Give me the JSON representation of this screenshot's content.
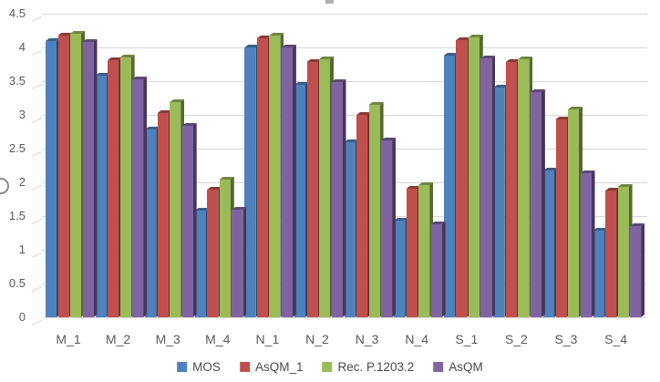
{
  "chart_data": {
    "type": "bar",
    "style": "3d-clustered-column",
    "title": "",
    "categories": [
      "M_1",
      "M_2",
      "M_3",
      "M_4",
      "N_1",
      "N_2",
      "N_3",
      "N_4",
      "S_1",
      "S_2",
      "S_3",
      "S_4"
    ],
    "series": [
      {
        "name": "MOS",
        "color": "#4F81BD",
        "values": [
          4.1,
          3.58,
          2.78,
          1.58,
          4.0,
          3.44,
          2.6,
          1.43,
          3.88,
          3.41,
          2.18,
          1.28
        ]
      },
      {
        "name": "AsQM_1",
        "color": "#C0504D",
        "values": [
          4.17,
          3.81,
          3.03,
          1.89,
          4.14,
          3.79,
          3.0,
          1.91,
          4.11,
          3.79,
          2.93,
          1.88
        ]
      },
      {
        "name": "Rec. P.1203.2",
        "color": "#9BBB59",
        "values": [
          4.2,
          3.85,
          3.19,
          2.04,
          4.17,
          3.82,
          3.15,
          1.96,
          4.15,
          3.82,
          3.08,
          1.93
        ]
      },
      {
        "name": "AsQM",
        "color": "#8064A2",
        "values": [
          4.08,
          3.53,
          2.84,
          1.6,
          4.0,
          3.48,
          2.62,
          1.38,
          3.84,
          3.34,
          2.13,
          1.35
        ]
      }
    ],
    "xlabel": "",
    "ylabel": "",
    "ylim": [
      0,
      4.5
    ],
    "ytick_step": 0.5,
    "yticks": [
      "0",
      "0.5",
      "1",
      "1.5",
      "2",
      "2.5",
      "3",
      "3.5",
      "4",
      "4.5"
    ],
    "grid": true,
    "legend_position": "bottom"
  },
  "colors": {
    "background": "#FFFFFF",
    "gridline": "#D8D8D8",
    "tick_text": "#595959",
    "legend_text": "#4A4A4A"
  }
}
